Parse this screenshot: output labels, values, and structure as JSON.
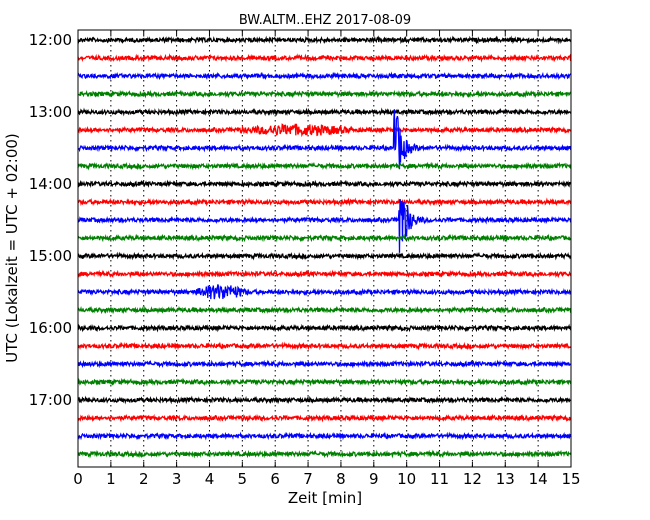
{
  "chart_data": {
    "type": "line",
    "chart_kind": "helicorder",
    "title": "BW.ALTM..EHZ 2017-08-09",
    "xlabel": "Zeit  [min]",
    "ylabel": "UTC (Lokalzeit = UTC + 02:00)",
    "xlim": [
      0,
      15
    ],
    "x_ticks": [
      "0",
      "1",
      "2",
      "3",
      "4",
      "5",
      "6",
      "7",
      "8",
      "9",
      "10",
      "11",
      "12",
      "13",
      "14",
      "15"
    ],
    "y_tick_labels": [
      "12:00",
      "13:00",
      "14:00",
      "15:00",
      "16:00",
      "17:00"
    ],
    "grid": "vertical dotted lines at each minute",
    "trace_start_times": [
      "12:00",
      "12:15",
      "12:30",
      "12:45",
      "13:00",
      "13:15",
      "13:30",
      "13:45",
      "14:00",
      "14:15",
      "14:30",
      "14:45",
      "15:00",
      "15:15",
      "15:30",
      "15:45",
      "16:00",
      "16:15",
      "16:30",
      "16:45",
      "17:00",
      "17:15",
      "17:30",
      "17:45"
    ],
    "color_cycle": [
      "#000000",
      "#ff0000",
      "#0000ff",
      "#008000"
    ],
    "events": [
      {
        "trace_start": "13:30",
        "start_min": 9.6,
        "end_min": 10.6,
        "peak_amplitude": 1.0
      },
      {
        "trace_start": "14:30",
        "start_min": 9.75,
        "end_min": 10.8,
        "peak_amplitude": 1.0
      },
      {
        "trace_start": "15:30",
        "start_min": 3.5,
        "end_min": 5.2,
        "peak_amplitude": 0.15
      },
      {
        "trace_start": "13:15",
        "start_min": 4.8,
        "end_min": 8.5,
        "peak_amplitude": 0.1
      }
    ]
  }
}
